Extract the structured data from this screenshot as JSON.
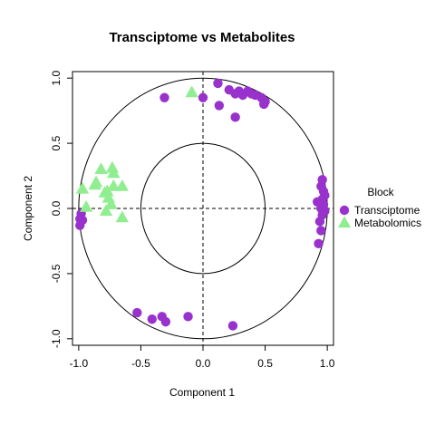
{
  "chart_data": {
    "type": "scatter",
    "title": "Transciptome vs Metabolites",
    "xlabel": "Component  1",
    "ylabel": "Component  2",
    "xlim": [
      -1.05,
      1.05
    ],
    "ylim": [
      -1.05,
      1.05
    ],
    "xticks": [
      "-1.0",
      "-0.5",
      "0.0",
      "0.5",
      "1.0"
    ],
    "yticks": [
      "-1.0",
      "-0.5",
      "0.0",
      "0.5",
      "1.0"
    ],
    "xtick_values": [
      -1.0,
      -0.5,
      0.0,
      0.5,
      1.0
    ],
    "ytick_values": [
      -1.0,
      -0.5,
      0.0,
      0.5,
      1.0
    ],
    "circles": [
      1.0,
      0.5
    ],
    "reference_lines": {
      "x": 0,
      "y": 0,
      "style": "dashed"
    },
    "grid": false,
    "legend": {
      "title": "Block",
      "placement": "right",
      "entries": [
        {
          "name": "Transciptome",
          "color": "#9932CC",
          "marker": "circle"
        },
        {
          "name": "Metabolomics",
          "color": "#90EE90",
          "marker": "triangle"
        }
      ]
    },
    "series": [
      {
        "name": "Transciptome",
        "color": "#9932CC",
        "marker": "circle",
        "points": [
          [
            -0.31,
            0.85
          ],
          [
            0.0,
            0.85
          ],
          [
            0.12,
            0.96
          ],
          [
            0.21,
            0.91
          ],
          [
            0.26,
            0.88
          ],
          [
            0.29,
            0.9
          ],
          [
            0.32,
            0.87
          ],
          [
            0.36,
            0.9
          ],
          [
            0.39,
            0.88
          ],
          [
            0.42,
            0.87
          ],
          [
            0.47,
            0.85
          ],
          [
            0.5,
            0.82
          ],
          [
            0.49,
            0.8
          ],
          [
            0.13,
            0.79
          ],
          [
            0.26,
            0.7
          ],
          [
            0.96,
            0.22
          ],
          [
            0.95,
            0.17
          ],
          [
            0.97,
            0.13
          ],
          [
            0.98,
            0.1
          ],
          [
            0.96,
            0.07
          ],
          [
            0.92,
            0.05
          ],
          [
            0.97,
            0.03
          ],
          [
            0.95,
            0.0
          ],
          [
            0.98,
            -0.02
          ],
          [
            0.96,
            -0.05
          ],
          [
            0.94,
            -0.1
          ],
          [
            0.95,
            -0.17
          ],
          [
            0.93,
            -0.27
          ],
          [
            -0.99,
            -0.08
          ],
          [
            -0.97,
            -0.09
          ],
          [
            -0.99,
            -0.13
          ],
          [
            -0.98,
            -0.04
          ],
          [
            -0.53,
            -0.8
          ],
          [
            -0.41,
            -0.85
          ],
          [
            -0.33,
            -0.83
          ],
          [
            -0.3,
            -0.87
          ],
          [
            -0.12,
            -0.83
          ],
          [
            0.24,
            -0.9
          ]
        ]
      },
      {
        "name": "Metabolomics",
        "color": "#90EE90",
        "marker": "triangle",
        "points": [
          [
            -0.09,
            0.89
          ],
          [
            -0.82,
            0.3
          ],
          [
            -0.73,
            0.31
          ],
          [
            -0.72,
            0.27
          ],
          [
            -0.86,
            0.2
          ],
          [
            -0.87,
            0.18
          ],
          [
            -0.97,
            0.15
          ],
          [
            -0.94,
            0.01
          ],
          [
            -0.79,
            0.12
          ],
          [
            -0.76,
            0.08
          ],
          [
            -0.72,
            0.17
          ],
          [
            -0.65,
            0.17
          ],
          [
            -0.78,
            -0.02
          ],
          [
            -0.74,
            0.03
          ],
          [
            -0.65,
            -0.07
          ],
          [
            -0.77,
            0.13
          ]
        ]
      }
    ]
  }
}
